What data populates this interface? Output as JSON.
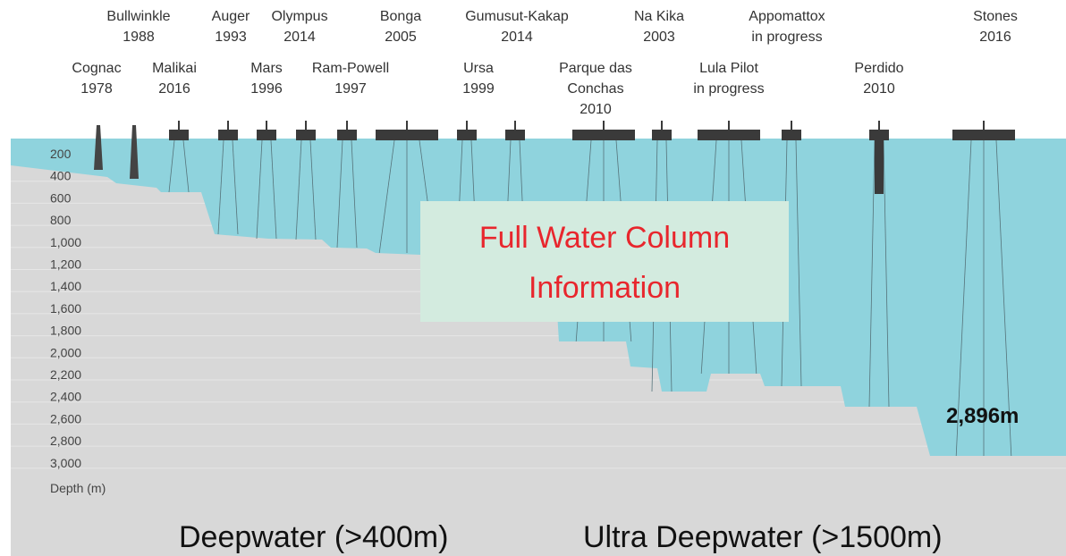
{
  "platforms_top": [
    {
      "lines": [
        "Bullwinkle",
        "1988"
      ]
    },
    {
      "lines": [
        "Auger",
        "1993"
      ]
    },
    {
      "lines": [
        "Olympus",
        "2014"
      ]
    },
    {
      "lines": [
        "Bonga",
        "2005"
      ]
    },
    {
      "lines": [
        "Gumusut-Kakap",
        "2014"
      ]
    },
    {
      "lines": [
        "Na Kika",
        "2003"
      ]
    },
    {
      "lines": [
        "Appomattox",
        "in progress"
      ],
      "color": "#e0404a"
    },
    {
      "lines": [
        "Stones",
        "2016"
      ]
    }
  ],
  "platforms_bottom": [
    {
      "lines": [
        "Cognac",
        "1978"
      ]
    },
    {
      "lines": [
        "Malikai",
        "2016"
      ]
    },
    {
      "lines": [
        "Mars",
        "1996"
      ]
    },
    {
      "lines": [
        "Ram-Powell",
        "1997"
      ]
    },
    {
      "lines": [
        "Ursa",
        "1999"
      ]
    },
    {
      "lines": [
        "Parque das",
        "Conchas",
        "2010"
      ]
    },
    {
      "lines": [
        "Lula Pilot",
        "in progress"
      ],
      "color": "#e0404a"
    },
    {
      "lines": [
        "Perdido",
        "2010"
      ]
    }
  ],
  "depth_labels": [
    "200",
    "400",
    "600",
    "800",
    "1,000",
    "1,200",
    "1,400",
    "1,600",
    "1,800",
    "2,000",
    "2,200",
    "2,400",
    "2,600",
    "2,800",
    "3,000"
  ],
  "depth_axis_label": "Depth (m)",
  "overlay": {
    "lines": [
      "Full Water Column",
      "Information"
    ]
  },
  "max_depth_annotation": "2,896m",
  "zones": [
    "Deepwater (>400m)",
    "Ultra Deepwater (>1500m)"
  ]
}
